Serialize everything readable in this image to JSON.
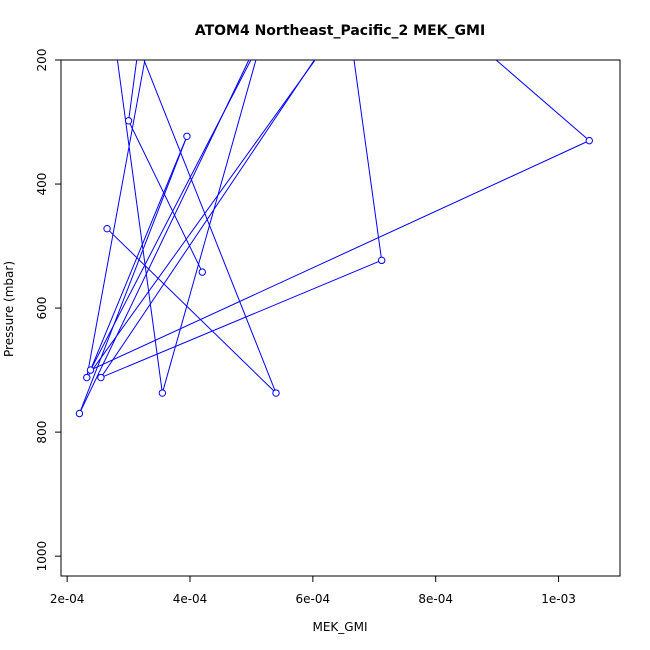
{
  "chart_data": {
    "type": "line",
    "title": "ATOM4 Northeast_Pacific_2 MEK_GMI",
    "xlabel": "MEK_GMI",
    "ylabel": "Pressure (mbar)",
    "xlim": [
      0.00019,
      0.0011
    ],
    "ylim": [
      1032,
      200
    ],
    "y_reversed": true,
    "x_ticks": [
      0.0002,
      0.0004,
      0.0006,
      0.0008,
      0.001
    ],
    "x_tick_labels": [
      "2e-04",
      "4e-04",
      "6e-04",
      "8e-04",
      "1e-03"
    ],
    "y_ticks": [
      200,
      400,
      600,
      800,
      1000
    ],
    "y_tick_labels": [
      "200",
      "400",
      "600",
      "800",
      "1000"
    ],
    "grid": false,
    "series": [
      {
        "color": "#0000ff",
        "marker": "open-circle",
        "segments": [
          [
            [
              0.000275,
              150
            ],
            [
              0.000355,
              737
            ]
          ],
          [
            [
              0.000355,
              737
            ],
            [
              0.00053,
              120
            ]
          ],
          [
            [
              0.000325,
              200
            ],
            [
              0.00054,
              737
            ]
          ],
          [
            [
              0.00054,
              737
            ],
            [
              0.000265,
              472
            ]
          ],
          [
            [
              0.0003,
              298
            ],
            [
              0.00042,
              542
            ]
          ],
          [
            [
              0.0003,
              298
            ],
            [
              0.00032,
              150
            ]
          ],
          [
            [
              0.000395,
              323
            ],
            [
              0.00022,
              770
            ]
          ],
          [
            [
              0.000395,
              323
            ],
            [
              0.000238,
              700
            ]
          ],
          [
            [
              0.000238,
              700
            ],
            [
              0.00052,
              160
            ]
          ],
          [
            [
              0.00022,
              770
            ],
            [
              0.00052,
              150
            ]
          ],
          [
            [
              0.000232,
              712
            ],
            [
              0.00064,
              150
            ]
          ],
          [
            [
              0.000232,
              712
            ],
            [
              0.000345,
              100
            ]
          ],
          [
            [
              0.000255,
              712
            ],
            [
              0.000712,
              523
            ]
          ],
          [
            [
              0.000255,
              712
            ],
            [
              0.00065,
              130
            ]
          ],
          [
            [
              0.000712,
              523
            ],
            [
              0.00066,
              150
            ]
          ],
          [
            [
              0.000238,
              700
            ],
            [
              0.00105,
              330
            ]
          ],
          [
            [
              0.00105,
              330
            ],
            [
              0.000875,
              180
            ]
          ]
        ],
        "points": [
          [
            0.0003,
            298
          ],
          [
            0.000395,
            323
          ],
          [
            0.00105,
            330
          ],
          [
            0.000265,
            472
          ],
          [
            0.00042,
            542
          ],
          [
            0.000712,
            523
          ],
          [
            0.000238,
            700
          ],
          [
            0.000232,
            712
          ],
          [
            0.000255,
            712
          ],
          [
            0.000355,
            737
          ],
          [
            0.00054,
            737
          ],
          [
            0.00022,
            770
          ]
        ]
      }
    ]
  }
}
